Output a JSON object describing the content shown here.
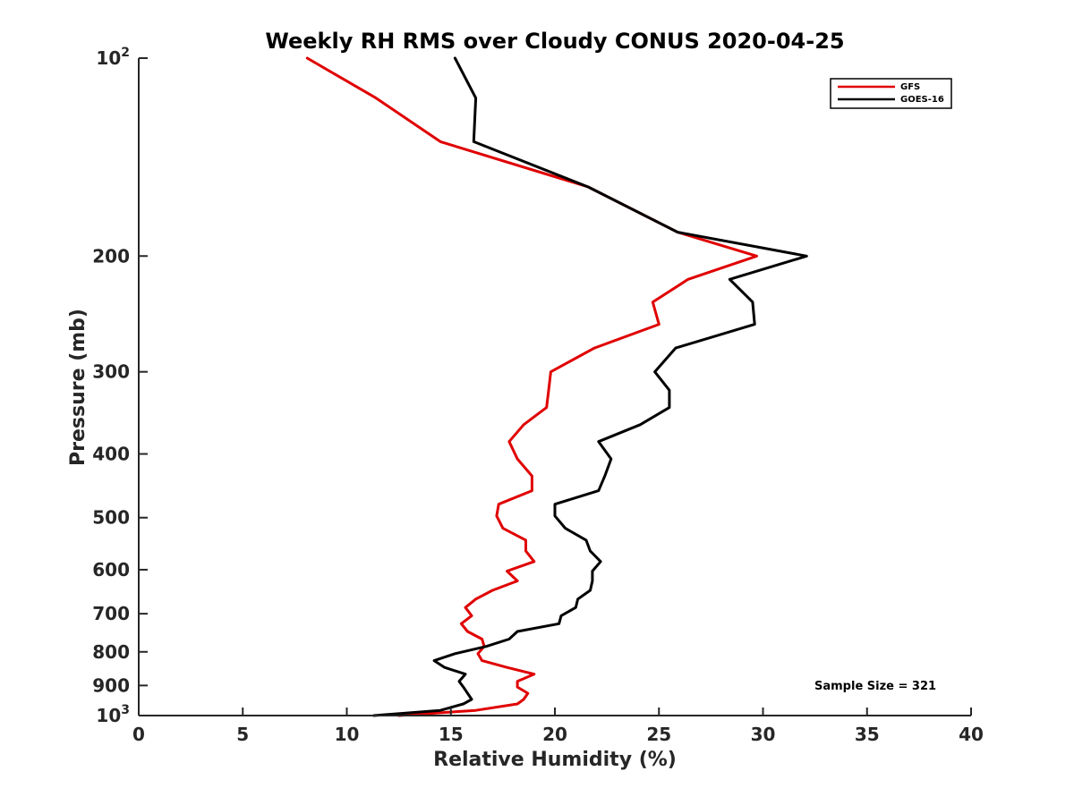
{
  "chart_data": {
    "type": "line",
    "title": "Weekly RH RMS over Cloudy CONUS 2020-04-25",
    "xlabel": "Relative Humidity (%)",
    "ylabel": "Pressure (mb)",
    "xlim": [
      0,
      40
    ],
    "ylim": [
      1000,
      100
    ],
    "yscale": "log-reversed",
    "xticks": [
      0,
      5,
      10,
      15,
      20,
      25,
      30,
      35,
      40
    ],
    "yticks": [
      {
        "value": 100,
        "label": "10",
        "sup": "2"
      },
      {
        "value": 200,
        "label": "200",
        "sup": ""
      },
      {
        "value": 300,
        "label": "300",
        "sup": ""
      },
      {
        "value": 400,
        "label": "400",
        "sup": ""
      },
      {
        "value": 500,
        "label": "500",
        "sup": ""
      },
      {
        "value": 600,
        "label": "600",
        "sup": ""
      },
      {
        "value": 700,
        "label": "700",
        "sup": ""
      },
      {
        "value": 800,
        "label": "800",
        "sup": ""
      },
      {
        "value": 900,
        "label": "900",
        "sup": ""
      },
      {
        "value": 1000,
        "label": "10",
        "sup": "3"
      }
    ],
    "legend_position": "top-right",
    "annotation": "Sample Size = 321",
    "series": [
      {
        "name": "GFS",
        "color": "#e00000",
        "points": [
          [
            8.1,
            100
          ],
          [
            11.4,
            115
          ],
          [
            14.5,
            134
          ],
          [
            21.6,
            157
          ],
          [
            25.9,
            184
          ],
          [
            29.7,
            200
          ],
          [
            26.4,
            217
          ],
          [
            24.7,
            235
          ],
          [
            25.0,
            254
          ],
          [
            21.9,
            276
          ],
          [
            19.8,
            300
          ],
          [
            19.7,
            320
          ],
          [
            19.6,
            340
          ],
          [
            18.5,
            361
          ],
          [
            17.8,
            383
          ],
          [
            18.2,
            407
          ],
          [
            18.9,
            432
          ],
          [
            18.9,
            455
          ],
          [
            17.3,
            477
          ],
          [
            17.2,
            497
          ],
          [
            17.5,
            519
          ],
          [
            18.6,
            541
          ],
          [
            18.6,
            562
          ],
          [
            19.0,
            583
          ],
          [
            17.7,
            603
          ],
          [
            18.2,
            624
          ],
          [
            17.0,
            645
          ],
          [
            16.2,
            665
          ],
          [
            15.7,
            685
          ],
          [
            16.0,
            705
          ],
          [
            15.5,
            725
          ],
          [
            15.8,
            745
          ],
          [
            16.5,
            765
          ],
          [
            16.6,
            785
          ],
          [
            16.3,
            805
          ],
          [
            16.5,
            825
          ],
          [
            17.7,
            845
          ],
          [
            19.0,
            865
          ],
          [
            18.2,
            887
          ],
          [
            18.2,
            905
          ],
          [
            18.7,
            925
          ],
          [
            18.5,
            945
          ],
          [
            18.2,
            960
          ],
          [
            16.2,
            982
          ],
          [
            12.5,
            1000
          ]
        ]
      },
      {
        "name": "GOES-16",
        "color": "#000000",
        "points": [
          [
            15.2,
            100
          ],
          [
            16.2,
            115
          ],
          [
            16.1,
            134
          ],
          [
            21.6,
            157
          ],
          [
            25.9,
            184
          ],
          [
            32.1,
            200
          ],
          [
            28.4,
            217
          ],
          [
            29.5,
            235
          ],
          [
            29.6,
            254
          ],
          [
            25.8,
            276
          ],
          [
            24.8,
            300
          ],
          [
            25.5,
            320
          ],
          [
            25.5,
            340
          ],
          [
            24.1,
            361
          ],
          [
            22.1,
            383
          ],
          [
            22.7,
            407
          ],
          [
            22.4,
            432
          ],
          [
            22.1,
            455
          ],
          [
            20.0,
            477
          ],
          [
            20.0,
            497
          ],
          [
            20.5,
            519
          ],
          [
            21.5,
            541
          ],
          [
            21.7,
            562
          ],
          [
            22.2,
            583
          ],
          [
            21.8,
            603
          ],
          [
            21.8,
            624
          ],
          [
            21.7,
            645
          ],
          [
            21.1,
            665
          ],
          [
            21.0,
            685
          ],
          [
            20.3,
            705
          ],
          [
            20.2,
            725
          ],
          [
            18.2,
            745
          ],
          [
            17.8,
            765
          ],
          [
            16.7,
            785
          ],
          [
            15.2,
            805
          ],
          [
            14.2,
            825
          ],
          [
            14.7,
            845
          ],
          [
            15.7,
            865
          ],
          [
            15.4,
            887
          ],
          [
            15.6,
            905
          ],
          [
            15.8,
            925
          ],
          [
            16.0,
            945
          ],
          [
            15.6,
            960
          ],
          [
            14.5,
            982
          ],
          [
            11.3,
            1000
          ]
        ]
      }
    ]
  }
}
